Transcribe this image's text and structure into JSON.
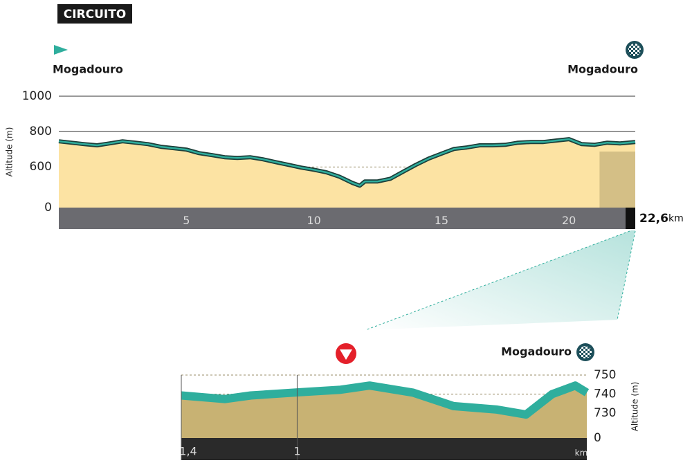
{
  "chart_data": [
    {
      "type": "area",
      "title": "CIRCUITO",
      "annotations": {
        "start": "Mogadouro",
        "finish": "Mogadouro"
      },
      "ylabel": "Altitude (m)",
      "x": [
        0,
        1,
        1.5,
        2,
        2.5,
        3,
        3.5,
        4,
        4.5,
        5,
        5.5,
        6,
        6.5,
        7,
        7.5,
        8,
        8.5,
        9,
        9.5,
        10,
        10.5,
        11,
        11.5,
        11.8,
        12,
        12.5,
        13,
        13.5,
        14,
        14.5,
        15,
        15.5,
        16,
        16.5,
        17,
        17.5,
        18,
        18.5,
        19,
        19.5,
        20,
        20.5,
        21,
        21.5,
        22,
        22.6
      ],
      "values": [
        745,
        729,
        722,
        733,
        745,
        737,
        729,
        714,
        706,
        698,
        678,
        667,
        655,
        651,
        655,
        643,
        627,
        612,
        596,
        584,
        569,
        545,
        510,
        494,
        518,
        518,
        533,
        573,
        612,
        647,
        675,
        702,
        710,
        722,
        722,
        725,
        737,
        741,
        741,
        749,
        757,
        729,
        725,
        737,
        733,
        741
      ],
      "xlim": [
        0,
        22.6
      ],
      "xticks": [
        5,
        10,
        15,
        20
      ],
      "total_km": {
        "value": 22.6,
        "label": "22,6"
      },
      "xunit": "km",
      "ylim": [
        0,
        1000
      ],
      "y_break": [
        0,
        370
      ],
      "yticks": [
        0,
        600,
        800,
        1000
      ],
      "y_axis_side": "left",
      "fill": "#fce3a3",
      "color": "#2a6f67",
      "grid": true
    },
    {
      "type": "area",
      "annotations": {
        "finish": "Mogadouro"
      },
      "ylabel": "Altitude (m)",
      "x": [
        1.4,
        1.25,
        1.16,
        0.99,
        0.85,
        0.75,
        0.6,
        0.46,
        0.31,
        0.21,
        0.12,
        0.04,
        0
      ],
      "values": [
        739.3,
        737.4,
        739.3,
        741,
        742.3,
        744.5,
        740.8,
        733.7,
        731.9,
        729.3,
        740,
        744.5,
        740.8
      ],
      "xlim": [
        1.4,
        0
      ],
      "xticks": [
        {
          "value": 1.4,
          "label": "1,4"
        },
        1
      ],
      "xunit": "km",
      "ylim": [
        0,
        750
      ],
      "y_break": [
        0,
        717
      ],
      "yticks": [
        0,
        730,
        740,
        750
      ],
      "y_axis_side": "right",
      "fill": "#c8b273",
      "color": "#2fae9d",
      "grid": true,
      "grid_dash": true
    }
  ]
}
